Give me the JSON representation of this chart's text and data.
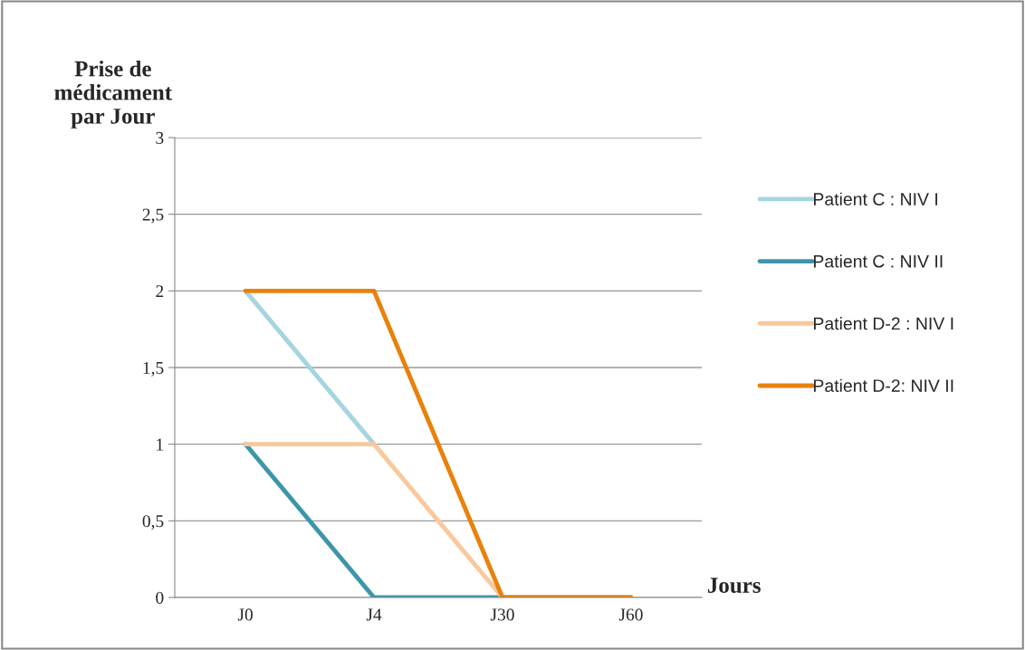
{
  "chart_data": {
    "type": "line",
    "ylabel": "Prise de\nmédicament\npar Jour",
    "xlabel": "Jours",
    "categories": [
      "J0",
      "J4",
      "J30",
      "J60"
    ],
    "series": [
      {
        "name": "Patient C : NIV I",
        "color": "#a5d5e0",
        "values": [
          2,
          1,
          null,
          null
        ]
      },
      {
        "name": "Patient C : NIV II",
        "color": "#3d96a8",
        "values": [
          1,
          0,
          0,
          0
        ]
      },
      {
        "name": "Patient D-2 : NIV I",
        "color": "#f9c89c",
        "values": [
          1,
          1,
          0,
          0
        ]
      },
      {
        "name": "Patient D-2: NIV II",
        "color": "#e8820c",
        "values": [
          2,
          2,
          0,
          0
        ]
      }
    ],
    "ylim": [
      0,
      3
    ],
    "yticks": [
      0,
      {
        "value": 0.5,
        "label": "0,5"
      },
      1,
      {
        "value": 1.5,
        "label": "1,5"
      },
      2,
      {
        "value": 2.5,
        "label": "2,5"
      },
      3
    ],
    "grid": "y",
    "legend": "right",
    "marker": "none",
    "line_style": "solid"
  }
}
